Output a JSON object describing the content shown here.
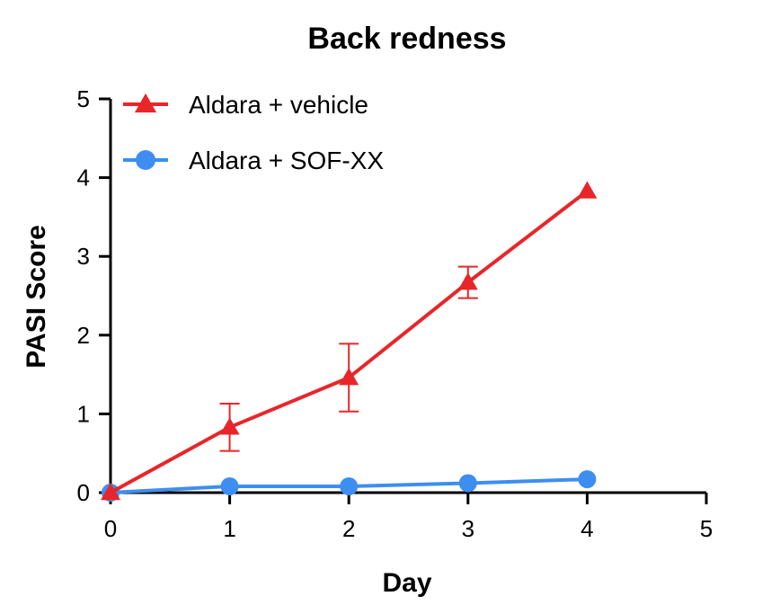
{
  "chart_data": {
    "type": "line",
    "title": "Back redness",
    "xlabel": "Day",
    "ylabel": "PASI Score",
    "xlim": [
      0,
      5
    ],
    "ylim": [
      0,
      5
    ],
    "xticks": [
      "0",
      "1",
      "2",
      "3",
      "4",
      "5"
    ],
    "yticks": [
      "0",
      "1",
      "2",
      "3",
      "4",
      "5"
    ],
    "grid": false,
    "legend_position": "top-left",
    "series": [
      {
        "name": "Aldara + vehicle",
        "color": "#e8262a",
        "marker": "triangle",
        "x": [
          0,
          1,
          2,
          3,
          4
        ],
        "y": [
          0,
          0.83,
          1.46,
          2.67,
          3.83
        ],
        "error": [
          0,
          0.3,
          0.43,
          0.2,
          0
        ]
      },
      {
        "name": "Aldara + SOF-XX",
        "color": "#3d8ef0",
        "marker": "circle",
        "x": [
          0,
          1,
          2,
          3,
          4
        ],
        "y": [
          0,
          0.08,
          0.08,
          0.12,
          0.17
        ],
        "error": [
          0,
          0,
          0,
          0,
          0
        ]
      }
    ]
  }
}
